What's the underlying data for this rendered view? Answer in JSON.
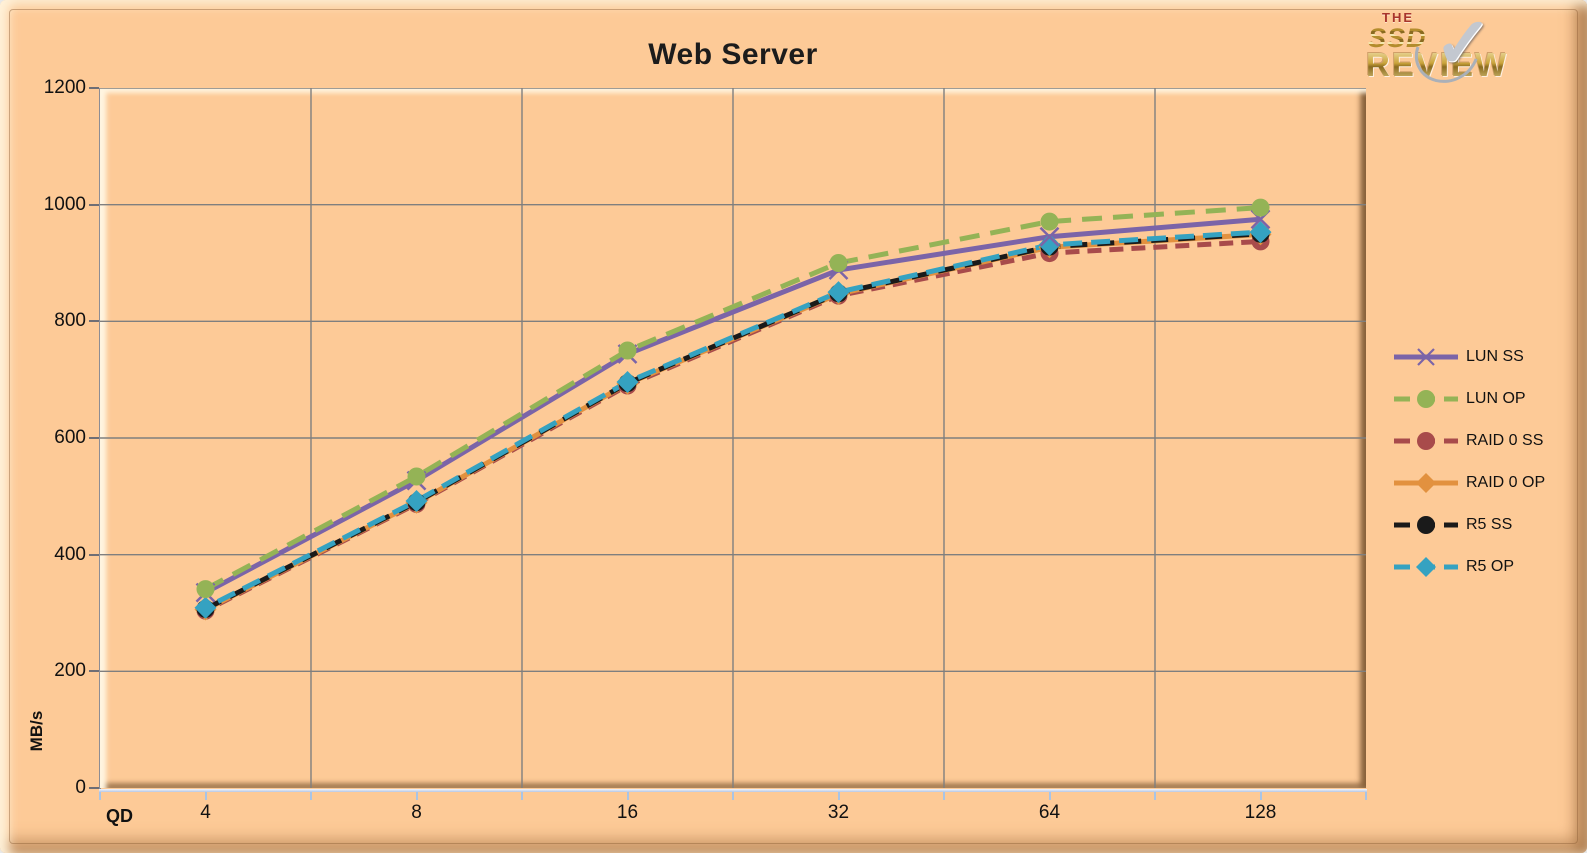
{
  "title": "Web Server",
  "logo": {
    "line1": "THE",
    "line2": "SSD",
    "line3": "REVIEW",
    "check_icon": "✓"
  },
  "chart_data": {
    "type": "line",
    "title": "Web Server",
    "xlabel": "QD",
    "ylabel": "MB/s",
    "x_categories": [
      "4",
      "8",
      "16",
      "32",
      "64",
      "128"
    ],
    "ylim": [
      0,
      1200
    ],
    "yticks": [
      0,
      200,
      400,
      600,
      800,
      1000,
      1200
    ],
    "grid": true,
    "gridline_color": "#7f7f7f",
    "legend_position": "right",
    "background_color": "#fdca97",
    "draw_order": [
      2,
      3,
      4,
      5,
      0,
      1
    ],
    "series": [
      {
        "name": "LUN SS",
        "color": "#7b64a8",
        "dash": "solid",
        "marker": "x",
        "values": [
          335,
          527,
          744,
          888,
          945,
          975
        ]
      },
      {
        "name": "LUN OP",
        "color": "#94b356",
        "dash": "20 11",
        "marker": "circle",
        "values": [
          341,
          534,
          750,
          900,
          971,
          995
        ]
      },
      {
        "name": "RAID 0 SS",
        "color": "#a84b4b",
        "dash": "14 8",
        "marker": "circle",
        "values": [
          304,
          487,
          690,
          844,
          917,
          937
        ]
      },
      {
        "name": "RAID 0 OP",
        "color": "#e2913f",
        "dash": "solid",
        "marker": "diamond",
        "values": [
          306,
          489,
          693,
          847,
          927,
          949
        ]
      },
      {
        "name": "R5 SS",
        "color": "#1a1a1a",
        "dash": "17 10",
        "marker": "circle",
        "values": [
          307,
          490,
          694,
          848,
          928,
          950
        ]
      },
      {
        "name": "R5 OP",
        "color": "#35a2c1",
        "dash": "19 9",
        "marker": "diamond",
        "values": [
          309,
          492,
          696,
          850,
          931,
          953
        ]
      }
    ]
  }
}
